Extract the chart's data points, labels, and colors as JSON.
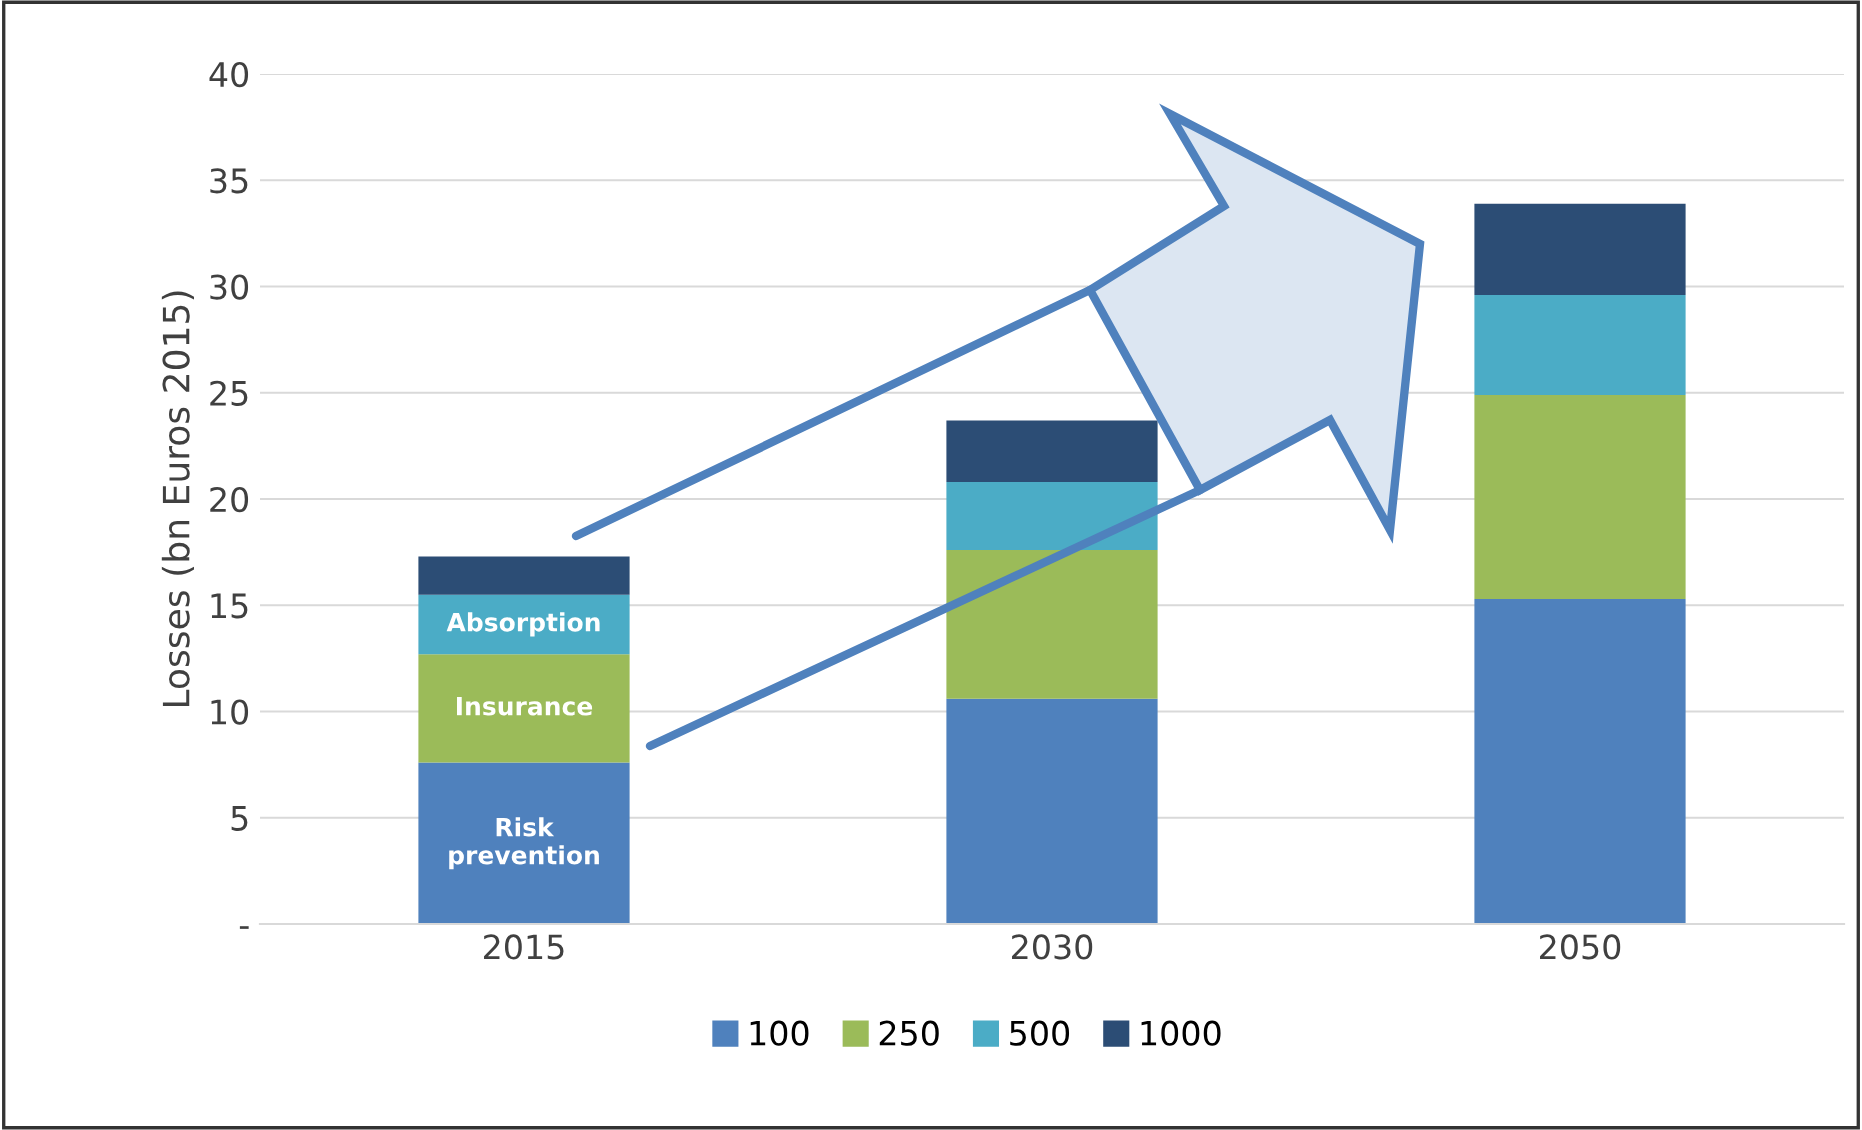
{
  "chart_data": {
    "type": "bar",
    "stacked": true,
    "ylabel": "Losses (bn Euros 2015)",
    "categories": [
      "2015",
      "2030",
      "2050"
    ],
    "series": [
      {
        "name": "100",
        "color": "#4f81bd",
        "values": [
          7.6,
          10.6,
          15.3
        ]
      },
      {
        "name": "250",
        "color": "#9bbb59",
        "values": [
          5.1,
          7.0,
          9.6
        ]
      },
      {
        "name": "500",
        "color": "#4bacc6",
        "values": [
          2.8,
          3.2,
          4.7
        ]
      },
      {
        "name": "1000",
        "color": "#2c4d75",
        "values": [
          1.8,
          2.9,
          4.3
        ]
      }
    ],
    "ylim": [
      0,
      40
    ],
    "yticks": [
      {
        "value": 0,
        "label": "-"
      },
      5,
      10,
      15,
      20,
      25,
      30,
      35,
      40
    ],
    "grid": "y",
    "legend": "bottom",
    "annotations": [
      "Risk\nprevention",
      "Insurance",
      "Absorption"
    ]
  }
}
